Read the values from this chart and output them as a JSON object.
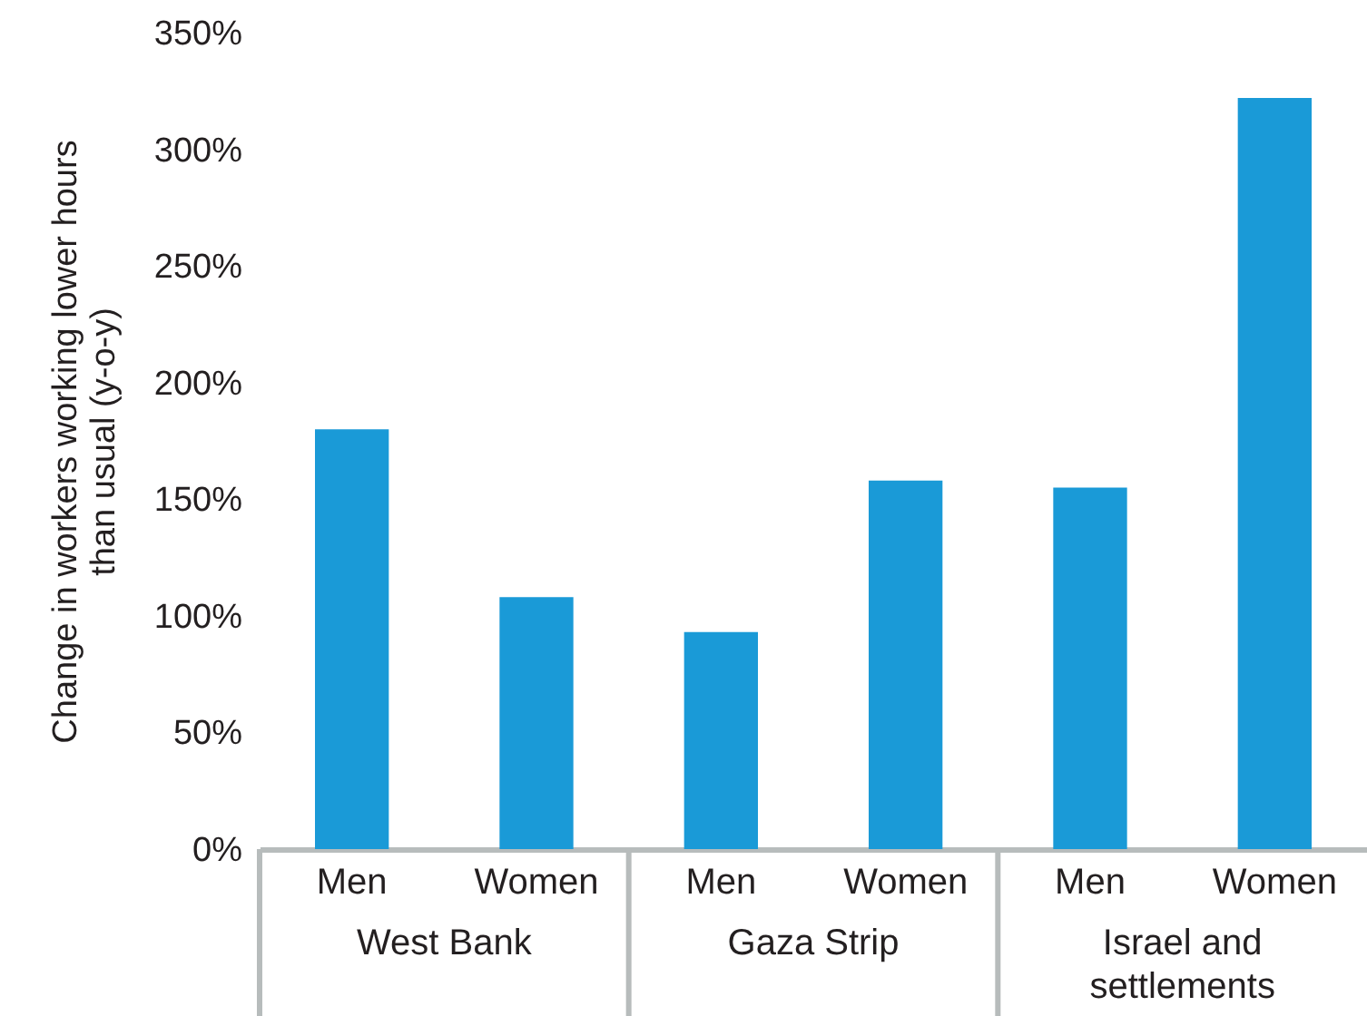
{
  "chart_data": {
    "type": "bar",
    "ylabel": "Change in workers working lower hours than usual (y-o-y)",
    "categories": [
      "Men",
      "Women",
      "Men",
      "Women",
      "Men",
      "Women"
    ],
    "values": [
      180,
      108,
      93,
      158,
      155,
      322
    ],
    "color": "#1a9ad7",
    "ylim": [
      0,
      350
    ],
    "yticks": [
      {
        "value": 0,
        "label": "0%"
      },
      {
        "value": 50,
        "label": "50%"
      },
      {
        "value": 100,
        "label": "100%"
      },
      {
        "value": 150,
        "label": "150%"
      },
      {
        "value": 200,
        "label": "200%"
      },
      {
        "value": 250,
        "label": "250%"
      },
      {
        "value": 300,
        "label": "300%"
      },
      {
        "value": 350,
        "label": "350%"
      }
    ],
    "annotations": [
      "West Bank",
      "Gaza Strip",
      "Israel and settlements"
    ]
  }
}
